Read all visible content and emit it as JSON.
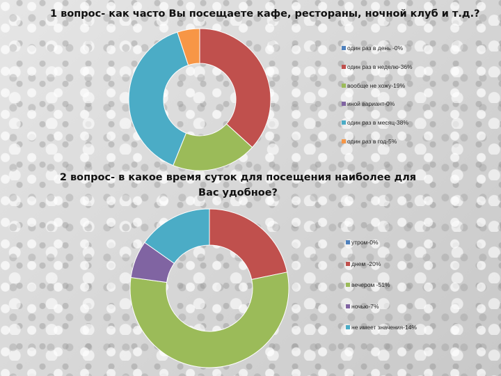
{
  "chart_data": [
    {
      "type": "pie",
      "title": "1 вопрос- как часто Вы посещаете кафе, рестораны, ночной клуб и т.д.?",
      "legend_position": "right",
      "categories": [
        "один раз в день -0%",
        "один раз в неделю-36%",
        "вообще не хожу-19%",
        "иной вариант-0%",
        "один раз в месяц-38%",
        "один раз в год-5%"
      ],
      "values": [
        0,
        36,
        19,
        0,
        38,
        5
      ],
      "colors": [
        "#4f81bd",
        "#c0504d",
        "#9bbb59",
        "#8064a2",
        "#4bacc6",
        "#f79646"
      ]
    },
    {
      "type": "pie",
      "title": "2 вопрос- в какое время суток для посещения наиболее для Вас удобное?",
      "legend_position": "right",
      "categories": [
        "утром-0%",
        "днем -20%",
        "вечером -51%",
        "ночью-7%",
        "не имеет значения-14%"
      ],
      "values": [
        0,
        20,
        51,
        7,
        14
      ],
      "colors": [
        "#4f81bd",
        "#c0504d",
        "#9bbb59",
        "#8064a2",
        "#4bacc6"
      ]
    }
  ]
}
